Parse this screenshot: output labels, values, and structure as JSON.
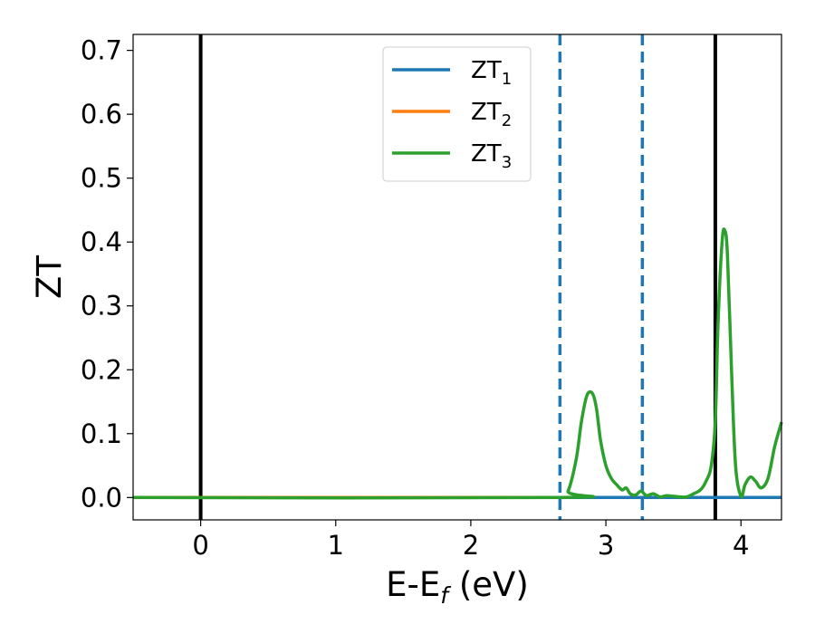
{
  "chart_data": {
    "type": "line",
    "title": "",
    "xlabel": "E-E",
    "xlabel_subscript": "f",
    "xlabel_suffix": " (eV)",
    "ylabel": "ZT",
    "xlim": [
      -0.5,
      4.3
    ],
    "ylim": [
      -0.035,
      0.725
    ],
    "xticks": [
      0,
      1,
      2,
      3,
      4
    ],
    "yticks": [
      0.0,
      0.1,
      0.2,
      0.3,
      0.4,
      0.5,
      0.6,
      0.7
    ],
    "xtick_labels": [
      "0",
      "1",
      "2",
      "3",
      "4"
    ],
    "ytick_labels": [
      "0.0",
      "0.1",
      "0.2",
      "0.3",
      "0.4",
      "0.5",
      "0.6",
      "0.7"
    ],
    "grid": false,
    "legend_position": "top-center",
    "vlines": [
      {
        "x": 0.0,
        "style": "solid",
        "color": "#000000"
      },
      {
        "x": 3.81,
        "style": "solid",
        "color": "#000000"
      },
      {
        "x": 2.66,
        "style": "dashed",
        "color": "#1f77b4"
      },
      {
        "x": 3.27,
        "style": "dashed",
        "color": "#1f77b4"
      }
    ],
    "series": [
      {
        "name": "ZT",
        "subscript": "1",
        "color": "#1f77b4",
        "x": [
          -0.5,
          4.3
        ],
        "y": [
          0.0,
          0.0
        ]
      },
      {
        "name": "ZT",
        "subscript": "2",
        "color": "#ff7f0e",
        "x": [
          -0.5,
          2.66
        ],
        "y": [
          0.0,
          0.0
        ]
      },
      {
        "name": "ZT",
        "subscript": "3",
        "color": "#2ca02c",
        "x": [
          -0.5,
          2.66,
          2.72,
          2.78,
          2.82,
          2.86,
          2.9,
          2.93,
          2.96,
          3.0,
          3.04,
          3.08,
          3.12,
          3.15,
          3.18,
          3.22,
          3.26,
          3.3,
          3.35,
          3.4,
          3.45,
          3.5,
          3.55,
          3.6,
          3.65,
          3.7,
          3.74,
          3.78,
          3.81,
          3.83,
          3.86,
          3.88,
          3.9,
          3.93,
          3.96,
          4.0,
          4.03,
          4.07,
          4.11,
          4.15,
          4.2,
          4.25,
          4.3
        ],
        "y": [
          0.0,
          0.0,
          0.01,
          0.06,
          0.12,
          0.16,
          0.163,
          0.14,
          0.09,
          0.05,
          0.03,
          0.02,
          0.012,
          0.015,
          0.006,
          0.004,
          0.01,
          0.003,
          0.006,
          0.001,
          0.003,
          0.002,
          0.001,
          0.001,
          0.006,
          0.012,
          0.025,
          0.05,
          0.12,
          0.27,
          0.4,
          0.418,
          0.38,
          0.2,
          0.05,
          0.002,
          0.02,
          0.032,
          0.025,
          0.015,
          0.03,
          0.08,
          0.118
        ]
      }
    ]
  }
}
